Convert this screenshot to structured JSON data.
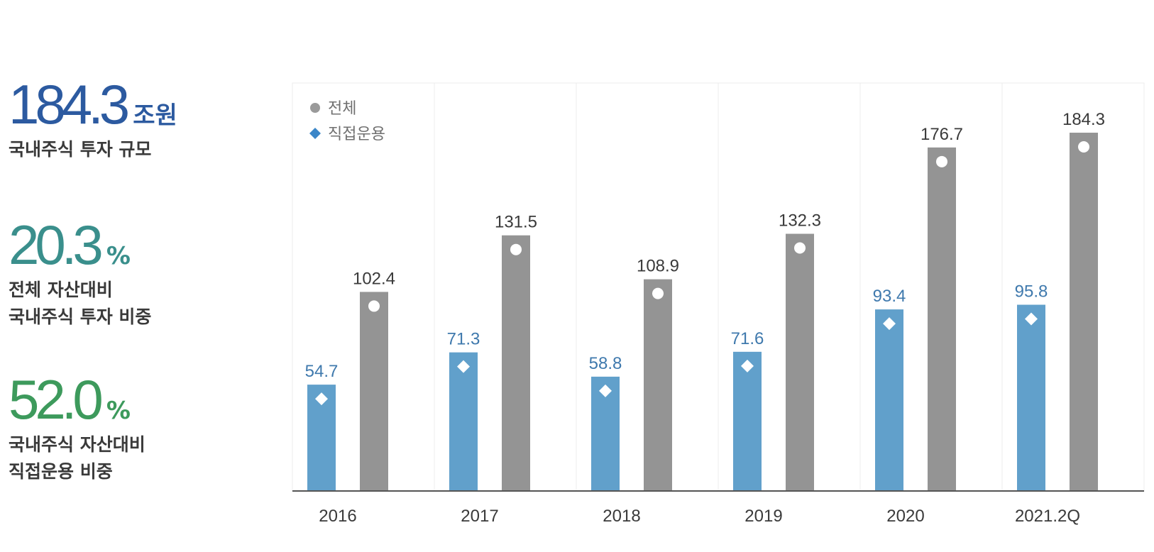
{
  "stats": [
    {
      "value": "184.3",
      "unit": "조원",
      "desc": [
        "국내주식 투자 규모"
      ],
      "color": "#2c5aa0"
    },
    {
      "value": "20.3",
      "unit": "%",
      "desc": [
        "전체 자산대비",
        "국내주식 투자 비중"
      ],
      "color": "#3a8f8c"
    },
    {
      "value": "52.0",
      "unit": "%",
      "desc": [
        "국내주식 자산대비",
        "직접운용 비중"
      ],
      "color": "#3d9a5c"
    }
  ],
  "chart_data": {
    "type": "bar",
    "categories": [
      "2016",
      "2017",
      "2018",
      "2019",
      "2020",
      "2021.2Q"
    ],
    "series": [
      {
        "name": "직접운용",
        "values": [
          54.7,
          71.3,
          58.8,
          71.6,
          93.4,
          95.8
        ],
        "color": "#61a0cb",
        "label_color": "#3f79ad",
        "marker": "diamond"
      },
      {
        "name": "전체",
        "values": [
          102.4,
          131.5,
          108.9,
          132.3,
          176.7,
          184.3
        ],
        "color": "#949494",
        "label_color": "#3a3a3a",
        "marker": "circle"
      }
    ],
    "legend": [
      {
        "name": "전체",
        "marker": "circle",
        "color": "#9a9a9a"
      },
      {
        "name": "직접운용",
        "marker": "diamond",
        "color": "#3b86c8"
      }
    ],
    "legend_position": "top-left",
    "ylim": [
      0,
      200
    ],
    "grid": "vertical-category-separators"
  }
}
